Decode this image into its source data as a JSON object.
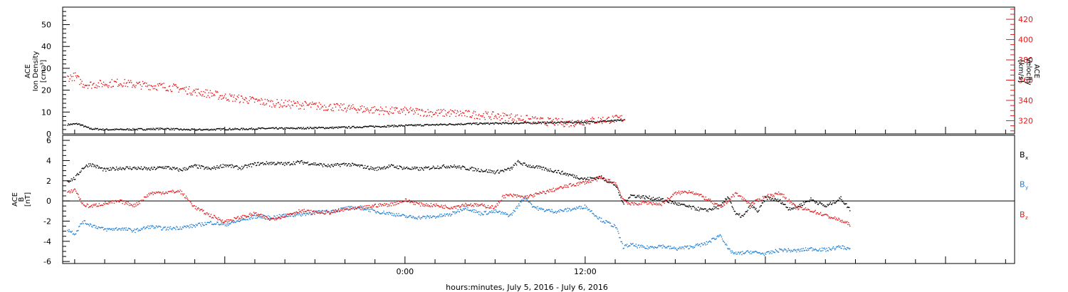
{
  "chart_data": [
    {
      "type": "scatter",
      "panel": "top",
      "title": "",
      "ylabel_left": [
        "ACE",
        "Ion Density",
        "[cm⁻³]"
      ],
      "ylabel_right": [
        "ACE",
        "Velocity",
        "[km/s]"
      ],
      "ylim_left": [
        0,
        58
      ],
      "yticks_left": [
        0,
        10,
        20,
        30,
        40,
        50
      ],
      "ylim_right": [
        307,
        432
      ],
      "yticks_right": [
        320,
        340,
        360,
        380,
        400,
        420
      ],
      "color_left": "#000000",
      "color_right": "#e41a1c",
      "series": [
        {
          "axis": "left",
          "color": "#000000",
          "points": [
            [
              -22.5,
              4.5
            ],
            [
              -21.8,
              4.8
            ],
            [
              -21,
              2.6
            ],
            [
              -20,
              2.2
            ],
            [
              -19,
              2.2
            ],
            [
              -18,
              2.3
            ],
            [
              -17,
              2.4
            ],
            [
              -16,
              2.6
            ],
            [
              -15,
              2.2
            ],
            [
              -14,
              2.1
            ],
            [
              -13,
              2.2
            ],
            [
              -12,
              2.4
            ],
            [
              -11,
              2.4
            ],
            [
              -10,
              2.6
            ],
            [
              -9,
              2.7
            ],
            [
              -8,
              2.7
            ],
            [
              -7,
              2.8
            ],
            [
              -6,
              3
            ],
            [
              -5,
              3
            ],
            [
              -4,
              3.2
            ],
            [
              -3,
              3.4
            ],
            [
              -2,
              3.6
            ],
            [
              -1,
              3.8
            ],
            [
              0,
              4
            ],
            [
              1,
              4.2
            ],
            [
              2,
              4.4
            ],
            [
              3,
              4.6
            ],
            [
              4,
              4.8
            ],
            [
              5,
              4.9
            ],
            [
              6,
              5
            ],
            [
              7,
              5.1
            ],
            [
              8,
              5.2
            ],
            [
              9,
              5.3
            ],
            [
              10,
              5.4
            ],
            [
              11,
              5.5
            ],
            [
              12,
              5.6
            ],
            [
              13,
              6
            ],
            [
              14,
              6.2
            ],
            [
              14.6,
              6.5
            ]
          ]
        },
        {
          "axis": "right",
          "color": "#e41a1c",
          "points": [
            [
              -22.5,
              363
            ],
            [
              -22,
              364
            ],
            [
              -21.5,
              357
            ],
            [
              -21,
              356
            ],
            [
              -20,
              357
            ],
            [
              -19,
              358
            ],
            [
              -18,
              356
            ],
            [
              -17,
              355
            ],
            [
              -16,
              354
            ],
            [
              -15,
              352
            ],
            [
              -14,
              349
            ],
            [
              -13,
              347
            ],
            [
              -12,
              344
            ],
            [
              -11,
              342
            ],
            [
              -10,
              340
            ],
            [
              -9,
              338
            ],
            [
              -8,
              337
            ],
            [
              -7,
              336
            ],
            [
              -6,
              335
            ],
            [
              -5,
              334
            ],
            [
              -4,
              333
            ],
            [
              -3,
              332
            ],
            [
              -2,
              331
            ],
            [
              -1,
              330
            ],
            [
              0,
              330
            ],
            [
              1,
              329
            ],
            [
              2,
              328
            ],
            [
              3,
              328
            ],
            [
              4,
              327
            ],
            [
              5,
              326
            ],
            [
              6,
              325
            ],
            [
              7,
              324
            ],
            [
              8,
              322
            ],
            [
              9,
              320
            ],
            [
              10,
              319
            ],
            [
              11,
              318
            ],
            [
              12,
              320
            ],
            [
              13,
              321
            ],
            [
              14,
              322
            ],
            [
              14.6,
              323
            ]
          ]
        }
      ]
    },
    {
      "type": "scatter",
      "panel": "bottom",
      "title": "",
      "ylabel": [
        "ACE",
        "B",
        "[nT]"
      ],
      "ylim": [
        -6.2,
        6.5
      ],
      "yticks": [
        -6,
        -4,
        -2,
        0,
        2,
        4,
        6
      ],
      "zero_line": true,
      "xlim_hours": [
        -23,
        24
      ],
      "x_tick_labels": [
        "0:00",
        "12:00"
      ],
      "xlabel": "hours:minutes, July  5, 2016 - July  6, 2016",
      "series": [
        {
          "name": "B",
          "subscript": "x",
          "color": "#000000",
          "points": [
            [
              -22.5,
              2
            ],
            [
              -22,
              2.3
            ],
            [
              -21.5,
              3.3
            ],
            [
              -21,
              3.7
            ],
            [
              -20,
              3.1
            ],
            [
              -19,
              3.3
            ],
            [
              -18,
              3.3
            ],
            [
              -17,
              3.2
            ],
            [
              -16,
              3.4
            ],
            [
              -15,
              3.1
            ],
            [
              -14,
              3.5
            ],
            [
              -13,
              3.2
            ],
            [
              -12,
              3.6
            ],
            [
              -11,
              3.3
            ],
            [
              -10,
              3.7
            ],
            [
              -9,
              3.8
            ],
            [
              -8,
              3.7
            ],
            [
              -7,
              3.9
            ],
            [
              -6,
              3.7
            ],
            [
              -5,
              3.5
            ],
            [
              -4,
              3.7
            ],
            [
              -3,
              3.5
            ],
            [
              -2,
              3.2
            ],
            [
              -1,
              3.5
            ],
            [
              0,
              3.3
            ],
            [
              1,
              3.2
            ],
            [
              2,
              3.4
            ],
            [
              3,
              3.5
            ],
            [
              4,
              3.3
            ],
            [
              5,
              3.1
            ],
            [
              6,
              2.9
            ],
            [
              7,
              3.2
            ],
            [
              7.5,
              3.9
            ],
            [
              8,
              3.6
            ],
            [
              9,
              3.3
            ],
            [
              10,
              3
            ],
            [
              11,
              2.6
            ],
            [
              12,
              2.2
            ],
            [
              13,
              2.4
            ],
            [
              13.5,
              2
            ],
            [
              14,
              1.6
            ],
            [
              14.5,
              -0.2
            ],
            [
              15,
              0.6
            ],
            [
              16,
              0.4
            ],
            [
              17,
              0.2
            ],
            [
              18,
              -0.2
            ],
            [
              19,
              -0.6
            ],
            [
              20,
              -0.9
            ],
            [
              21,
              -0.5
            ],
            [
              21.5,
              0.5
            ],
            [
              22,
              -1.3
            ],
            [
              22.5,
              -1.5
            ],
            [
              23,
              -0.4
            ],
            [
              23.5,
              -1
            ],
            [
              24,
              0.4
            ],
            [
              25,
              0
            ],
            [
              25.5,
              -0.7
            ],
            [
              26,
              -0.6
            ],
            [
              27,
              0.2
            ],
            [
              28,
              -0.5
            ],
            [
              29,
              0.3
            ],
            [
              29.6,
              -0.8
            ]
          ]
        },
        {
          "name": "B",
          "subscript": "y",
          "color": "#1f7fd4",
          "points": [
            [
              -22.5,
              -2.8
            ],
            [
              -22,
              -3.2
            ],
            [
              -21.5,
              -2
            ],
            [
              -21,
              -2.3
            ],
            [
              -20,
              -2.8
            ],
            [
              -19,
              -2.7
            ],
            [
              -18,
              -2.9
            ],
            [
              -17,
              -2.5
            ],
            [
              -16,
              -2.7
            ],
            [
              -15,
              -2.6
            ],
            [
              -14,
              -2.4
            ],
            [
              -13,
              -2.1
            ],
            [
              -12,
              -2.3
            ],
            [
              -11,
              -1.9
            ],
            [
              -10,
              -1.5
            ],
            [
              -9,
              -1.6
            ],
            [
              -8,
              -1.4
            ],
            [
              -7,
              -1.3
            ],
            [
              -6,
              -1.1
            ],
            [
              -5,
              -1
            ],
            [
              -4,
              -0.7
            ],
            [
              -3,
              -0.6
            ],
            [
              -2,
              -1
            ],
            [
              -1,
              -1.2
            ],
            [
              0,
              -1.5
            ],
            [
              1,
              -1.6
            ],
            [
              2,
              -1.5
            ],
            [
              3,
              -1.3
            ],
            [
              4,
              -0.6
            ],
            [
              5,
              -1.2
            ],
            [
              6,
              -1
            ],
            [
              7,
              -1.4
            ],
            [
              8,
              0.5
            ],
            [
              8.5,
              -0.5
            ],
            [
              9,
              -0.8
            ],
            [
              10,
              -1
            ],
            [
              11,
              -0.8
            ],
            [
              12,
              -0.5
            ],
            [
              13,
              -1.8
            ],
            [
              14,
              -2.5
            ],
            [
              14.5,
              -4.5
            ],
            [
              15,
              -4.3
            ],
            [
              16,
              -4.6
            ],
            [
              17,
              -4.4
            ],
            [
              18,
              -4.7
            ],
            [
              19,
              -4.5
            ],
            [
              20,
              -4.2
            ],
            [
              21,
              -3.3
            ],
            [
              21.5,
              -4.8
            ],
            [
              22,
              -5.2
            ],
            [
              23,
              -5
            ],
            [
              24,
              -5.2
            ],
            [
              25,
              -4.8
            ],
            [
              26,
              -4.9
            ],
            [
              27,
              -4.7
            ],
            [
              28,
              -4.8
            ],
            [
              29,
              -4.5
            ],
            [
              29.6,
              -4.7
            ]
          ]
        },
        {
          "name": "B",
          "subscript": "z",
          "color": "#e41a1c",
          "points": [
            [
              -22.5,
              0.8
            ],
            [
              -22,
              1.2
            ],
            [
              -21.5,
              -0.3
            ],
            [
              -21,
              -0.5
            ],
            [
              -20,
              -0.2
            ],
            [
              -19,
              0
            ],
            [
              -18,
              -0.4
            ],
            [
              -17,
              0.8
            ],
            [
              -16,
              0.9
            ],
            [
              -15,
              1
            ],
            [
              -14,
              -0.6
            ],
            [
              -13,
              -1.4
            ],
            [
              -12,
              -2
            ],
            [
              -11,
              -1.6
            ],
            [
              -10,
              -1.2
            ],
            [
              -9,
              -1.8
            ],
            [
              -8,
              -1.4
            ],
            [
              -7,
              -0.9
            ],
            [
              -6,
              -1.1
            ],
            [
              -5,
              -1.1
            ],
            [
              -4,
              -0.8
            ],
            [
              -3,
              -0.7
            ],
            [
              -2,
              -0.4
            ],
            [
              -1,
              -0.3
            ],
            [
              0,
              0.1
            ],
            [
              1,
              -0.3
            ],
            [
              2,
              -0.4
            ],
            [
              3,
              -0.6
            ],
            [
              4,
              -0.3
            ],
            [
              5,
              -0.4
            ],
            [
              6,
              -0.6
            ],
            [
              6.5,
              0.5
            ],
            [
              7,
              0.6
            ],
            [
              8,
              0.4
            ],
            [
              9,
              0.8
            ],
            [
              10,
              1.2
            ],
            [
              11,
              1.6
            ],
            [
              12,
              1.9
            ],
            [
              13,
              2.3
            ],
            [
              14,
              1.8
            ],
            [
              14.5,
              0.2
            ],
            [
              15,
              -0.3
            ],
            [
              16,
              -0.1
            ],
            [
              17,
              -0.3
            ],
            [
              18,
              0.8
            ],
            [
              19,
              1
            ],
            [
              20,
              0.3
            ],
            [
              21,
              -0.6
            ],
            [
              22,
              0.8
            ],
            [
              23,
              -0.3
            ],
            [
              24,
              0.5
            ],
            [
              25,
              0.8
            ],
            [
              26,
              -0.6
            ],
            [
              27,
              -0.9
            ],
            [
              28,
              -1.4
            ],
            [
              29,
              -1.9
            ],
            [
              29.6,
              -2.3
            ]
          ]
        }
      ]
    }
  ]
}
